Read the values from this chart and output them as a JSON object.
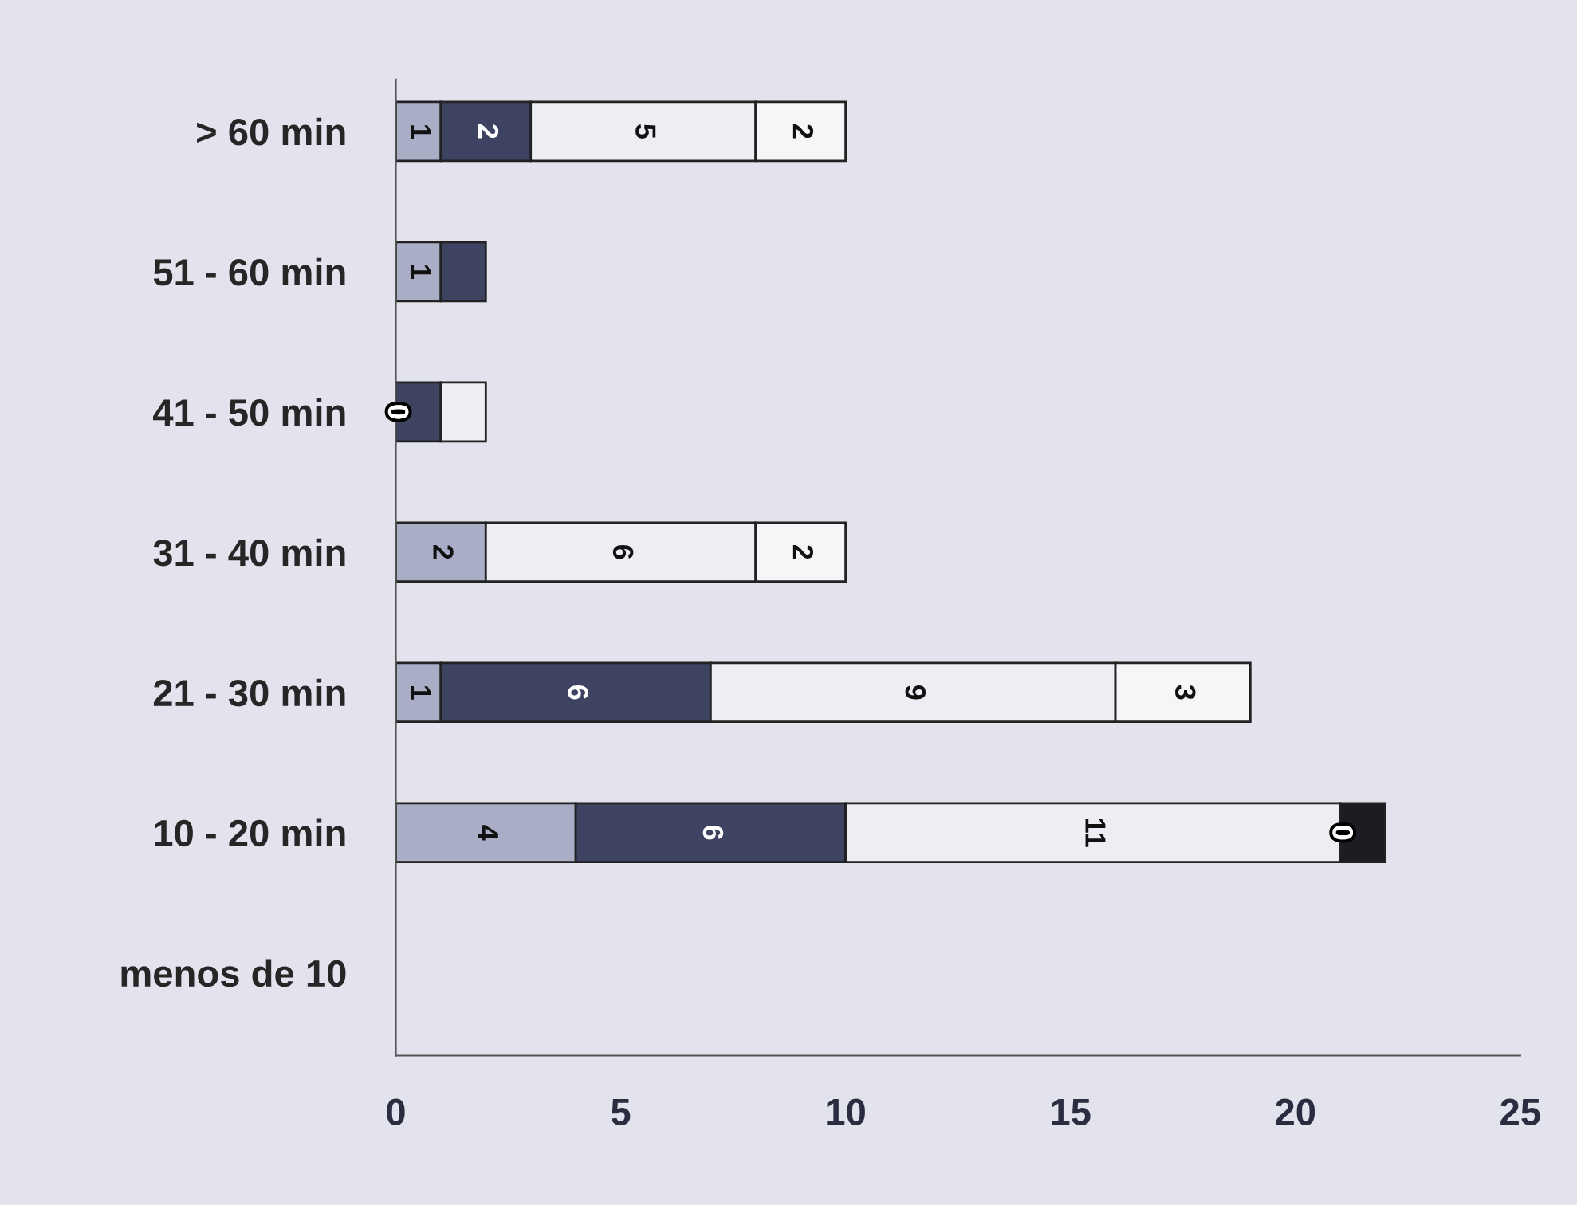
{
  "chart_data": {
    "type": "bar",
    "orientation": "horizontal",
    "stacked": true,
    "categories": [
      "> 60 min",
      "51 - 60 min",
      "41 - 50 min",
      "31 - 40 min",
      "21 - 30 min",
      "10 - 20 min",
      "menos de 10"
    ],
    "series": [
      {
        "color": "#a9aec6",
        "values": [
          1,
          1,
          0,
          2,
          1,
          4,
          0
        ],
        "value_labels": [
          "1",
          "1",
          "0",
          "2",
          "1",
          "4",
          null
        ]
      },
      {
        "color": "#3d4361",
        "values": [
          2,
          1,
          1,
          0,
          6,
          6,
          0
        ],
        "value_labels": [
          "2",
          null,
          null,
          null,
          "6",
          "6",
          null
        ]
      },
      {
        "color": "#eceef4",
        "values": [
          5,
          0,
          1,
          6,
          9,
          11,
          0
        ],
        "value_labels": [
          "5",
          null,
          null,
          "6",
          "9",
          "11",
          null
        ]
      },
      {
        "color": "#f6f6f8",
        "values": [
          2,
          0,
          0,
          2,
          3,
          0,
          0
        ],
        "value_labels": [
          "2",
          null,
          null,
          "2",
          "3",
          "0",
          null
        ]
      },
      {
        "color": "#1c1c22",
        "values": [
          0,
          0,
          0,
          0,
          0,
          1,
          0
        ],
        "value_labels": [
          null,
          null,
          null,
          null,
          null,
          null,
          null
        ]
      }
    ],
    "xlim": [
      0,
      25
    ],
    "xticks": [
      0,
      5,
      10,
      15,
      20,
      25
    ],
    "grid": false,
    "legend": false
  }
}
